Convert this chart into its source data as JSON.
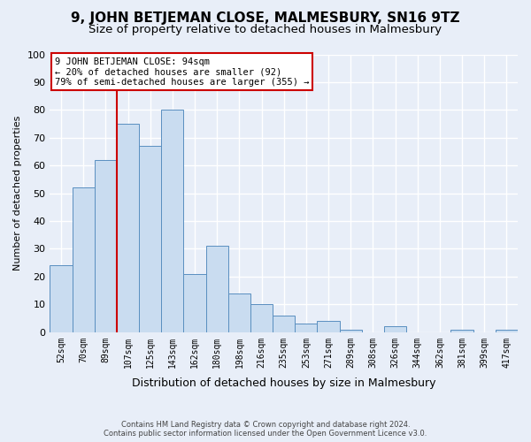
{
  "title": "9, JOHN BETJEMAN CLOSE, MALMESBURY, SN16 9TZ",
  "subtitle": "Size of property relative to detached houses in Malmesbury",
  "xlabel": "Distribution of detached houses by size in Malmesbury",
  "ylabel": "Number of detached properties",
  "bar_labels": [
    "52sqm",
    "70sqm",
    "89sqm",
    "107sqm",
    "125sqm",
    "143sqm",
    "162sqm",
    "180sqm",
    "198sqm",
    "216sqm",
    "235sqm",
    "253sqm",
    "271sqm",
    "289sqm",
    "308sqm",
    "326sqm",
    "344sqm",
    "362sqm",
    "381sqm",
    "399sqm",
    "417sqm"
  ],
  "bar_heights": [
    24,
    52,
    62,
    75,
    67,
    80,
    21,
    31,
    14,
    10,
    6,
    3,
    4,
    1,
    0,
    2,
    0,
    0,
    1,
    0,
    1
  ],
  "bar_color": "#c9dcf0",
  "bar_edge_color": "#5a8fc0",
  "vline_color": "#cc0000",
  "annotation_title": "9 JOHN BETJEMAN CLOSE: 94sqm",
  "annotation_line1": "← 20% of detached houses are smaller (92)",
  "annotation_line2": "79% of semi-detached houses are larger (355) →",
  "annotation_box_color": "#ffffff",
  "annotation_box_edge": "#cc0000",
  "ylim": [
    0,
    100
  ],
  "footer1": "Contains HM Land Registry data © Crown copyright and database right 2024.",
  "footer2": "Contains public sector information licensed under the Open Government Licence v3.0.",
  "bg_color": "#e8eef8",
  "grid_color": "#ffffff",
  "title_fontsize": 11,
  "subtitle_fontsize": 9.5
}
